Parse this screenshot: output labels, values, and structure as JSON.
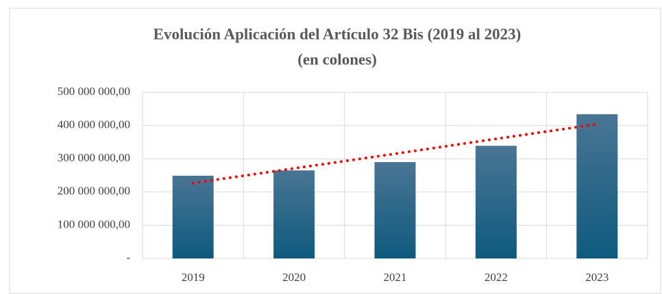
{
  "chart_data": {
    "type": "bar",
    "title": "Evolución Aplicación del Artículo 32 Bis (2019 al 2023)",
    "subtitle": "(en colones)",
    "categories": [
      "2019",
      "2020",
      "2021",
      "2022",
      "2023"
    ],
    "values": [
      249000000,
      265000000,
      290000000,
      339000000,
      434000000
    ],
    "color": "#0e5a7e",
    "trendline": {
      "color": "#ff0000",
      "values": [
        227000000,
        271000000,
        315000000,
        360000000,
        404000000
      ]
    },
    "ylim": [
      0,
      500000000
    ],
    "yticks": [
      {
        "value": 0,
        "label": "-"
      },
      {
        "value": 100000000,
        "label": "100 000 000,00"
      },
      {
        "value": 200000000,
        "label": "200 000 000,00"
      },
      {
        "value": 300000000,
        "label": "300 000 000,00"
      },
      {
        "value": 400000000,
        "label": "400 000 000,00"
      },
      {
        "value": 500000000,
        "label": "500 000 000,00"
      }
    ],
    "grid": true
  }
}
